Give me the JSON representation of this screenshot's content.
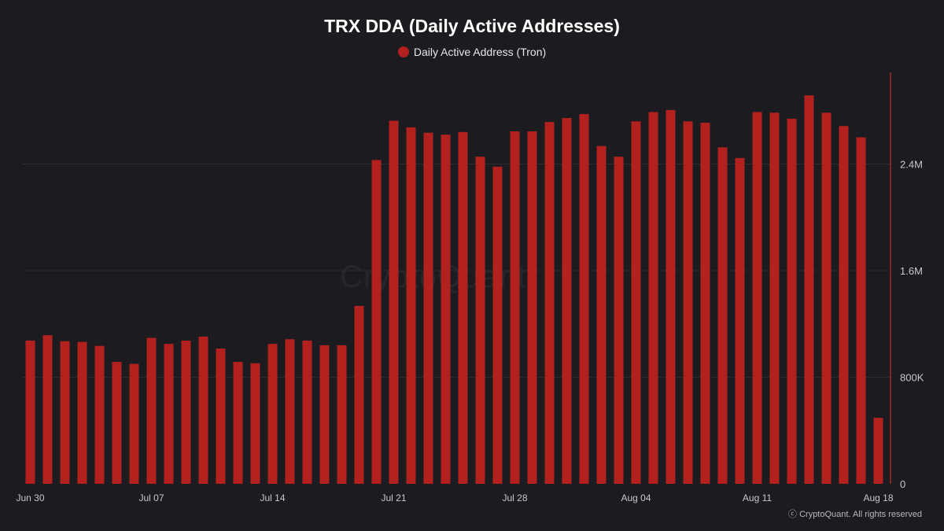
{
  "title": "TRX DDA (Daily Active Addresses)",
  "legend": {
    "label": "Daily Active Address (Tron)",
    "color": "#b3211f"
  },
  "watermark": "CryptoQuant",
  "footer": "ⓒ CryptoQuant. All rights reserved",
  "colors": {
    "bar": "#b3211f",
    "axis": "#9c2a28",
    "grid": "#2c2c31",
    "text": "#c8c8c8"
  },
  "chart_data": {
    "type": "bar",
    "xlabel": "",
    "ylabel": "",
    "ylim": [
      0,
      3070000
    ],
    "y_ticks": [
      0,
      800000,
      1600000,
      2400000
    ],
    "y_tick_labels": [
      "0",
      "800K",
      "1.6M",
      "2.4M"
    ],
    "x_tick_labels": [
      "Jun 30",
      "Jul 07",
      "Jul 14",
      "Jul 21",
      "Jul 28",
      "Aug 04",
      "Aug 11",
      "Aug 18"
    ],
    "x_tick_indices": [
      0,
      7,
      14,
      21,
      28,
      35,
      42,
      49
    ],
    "categories": [
      "Jun 30",
      "Jul 01",
      "Jul 02",
      "Jul 03",
      "Jul 04",
      "Jul 05",
      "Jul 06",
      "Jul 07",
      "Jul 08",
      "Jul 09",
      "Jul 10",
      "Jul 11",
      "Jul 12",
      "Jul 13",
      "Jul 14",
      "Jul 15",
      "Jul 16",
      "Jul 17",
      "Jul 18",
      "Jul 19",
      "Jul 20",
      "Jul 21",
      "Jul 22",
      "Jul 23",
      "Jul 24",
      "Jul 25",
      "Jul 26",
      "Jul 27",
      "Jul 28",
      "Jul 29",
      "Jul 30",
      "Jul 31",
      "Aug 01",
      "Aug 02",
      "Aug 03",
      "Aug 04",
      "Aug 05",
      "Aug 06",
      "Aug 07",
      "Aug 08",
      "Aug 09",
      "Aug 10",
      "Aug 11",
      "Aug 12",
      "Aug 13",
      "Aug 14",
      "Aug 15",
      "Aug 16",
      "Aug 17",
      "Aug 18"
    ],
    "series": [
      {
        "name": "Daily Active Address (Tron)",
        "values": [
          1075000,
          1115000,
          1070000,
          1065000,
          1035000,
          915000,
          900000,
          1095000,
          1050000,
          1075000,
          1105000,
          1015000,
          915000,
          905000,
          1050000,
          1085000,
          1075000,
          1040000,
          1040000,
          1335000,
          2430000,
          2725000,
          2675000,
          2635000,
          2620000,
          2640000,
          2455000,
          2380000,
          2645000,
          2645000,
          2715000,
          2745000,
          2775000,
          2535000,
          2455000,
          2720000,
          2790000,
          2805000,
          2720000,
          2710000,
          2525000,
          2445000,
          2790000,
          2785000,
          2740000,
          2915000,
          2785000,
          2685000,
          2600000,
          495000
        ]
      }
    ]
  }
}
